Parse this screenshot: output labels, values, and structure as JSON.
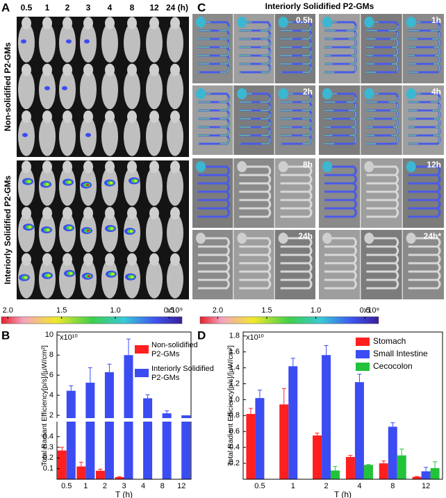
{
  "panel_a": {
    "letter": "A",
    "time_labels": [
      "0.5",
      "1",
      "2",
      "3",
      "4",
      "8",
      "12",
      "24 (h)"
    ],
    "group_labels": [
      "Non-solidified P2-GMs",
      "Interiorly Solidified P2-GMs"
    ],
    "colorbar": {
      "lim": [
        2.06,
        0.38
      ],
      "ticks": [
        {
          "value": 2,
          "label": "2.0"
        },
        1.5,
        {
          "value": 1,
          "label": "1.0"
        },
        0.5
      ],
      "multiplier": "x10⁹"
    }
  },
  "panel_c": {
    "letter": "C",
    "title": "Interiorly Solidified P2-GMs",
    "time_labels": [
      "0.5h",
      "1h",
      "2h",
      "4h",
      "8h",
      "12h",
      "24h",
      "24h*"
    ],
    "colorbar": {
      "lim": [
        2.18,
        0.36
      ],
      "ticks": [
        {
          "value": 2,
          "label": "2.0"
        },
        1.5,
        {
          "value": 1,
          "label": "1.0"
        },
        0.5
      ],
      "multiplier": "x10⁹"
    }
  },
  "chart_data": [
    {
      "type": "broken-bar",
      "letter": "B",
      "multiplier": "x10¹⁰",
      "ylabel": "Total Radiant Efficiency[p/s]/[µW/cm²]",
      "xlabel": "T (h)",
      "categories": [
        "0.5",
        "1",
        "2",
        "3",
        "4",
        "8",
        "12"
      ],
      "series": [
        {
          "name": "Non-solidified P2-GMs",
          "color": "#ff1f1f",
          "values": [
            0.27,
            0.12,
            0.08,
            0.02,
            null,
            null,
            null
          ],
          "errors": [
            0.03,
            0.04,
            0.015,
            0.005,
            null,
            null,
            null
          ]
        },
        {
          "name": "Interiorly Solidified P2-GMs",
          "color": "#3b4cf2",
          "values": [
            4.45,
            5.25,
            6.3,
            8.0,
            3.7,
            2.2,
            2.0
          ],
          "errors": [
            0.5,
            1.5,
            0.8,
            1.6,
            0.35,
            0.25,
            null
          ]
        }
      ],
      "ylim_lower": [
        0,
        0.45
      ],
      "yticks_lower": [
        0.1,
        0.2,
        0.3,
        0.4
      ],
      "ylim_upper": [
        2,
        10.3
      ],
      "yticks_upper": [
        2,
        4,
        6,
        8,
        10
      ],
      "legend": "top-right"
    },
    {
      "type": "bar",
      "letter": "D",
      "multiplier": "x10¹⁰",
      "ylabel": "Total Radiant Efficiency[p/s]/[µW/cm²]",
      "xlabel": "T (h)",
      "categories": [
        "0.5",
        "1",
        "2",
        "4",
        "8",
        "12"
      ],
      "series": [
        {
          "name": "Stomach",
          "color": "#ff1f1f",
          "values": [
            0.82,
            0.94,
            0.55,
            0.28,
            0.2,
            0.03
          ],
          "errors": [
            0.07,
            0.2,
            0.03,
            0.02,
            0.03,
            0.005
          ]
        },
        {
          "name": "Small Intestine",
          "color": "#3b4cf2",
          "values": [
            1.02,
            1.42,
            1.56,
            1.22,
            0.66,
            0.1
          ],
          "errors": [
            0.1,
            0.1,
            0.12,
            0.1,
            0.05,
            0.05
          ]
        },
        {
          "name": "Cecocolon",
          "color": "#22c33a",
          "values": [
            null,
            null,
            0.11,
            0.18,
            0.3,
            0.14
          ],
          "errors": [
            null,
            null,
            0.05,
            0.005,
            0.08,
            0.08
          ]
        }
      ],
      "ylim": [
        0,
        1.85
      ],
      "yticks": [
        0.2,
        0.4,
        0.6,
        0.8,
        {
          "value": 1,
          "label": "1.0"
        },
        1.2,
        1.4,
        1.6,
        1.8
      ],
      "legend": "top-right"
    }
  ]
}
